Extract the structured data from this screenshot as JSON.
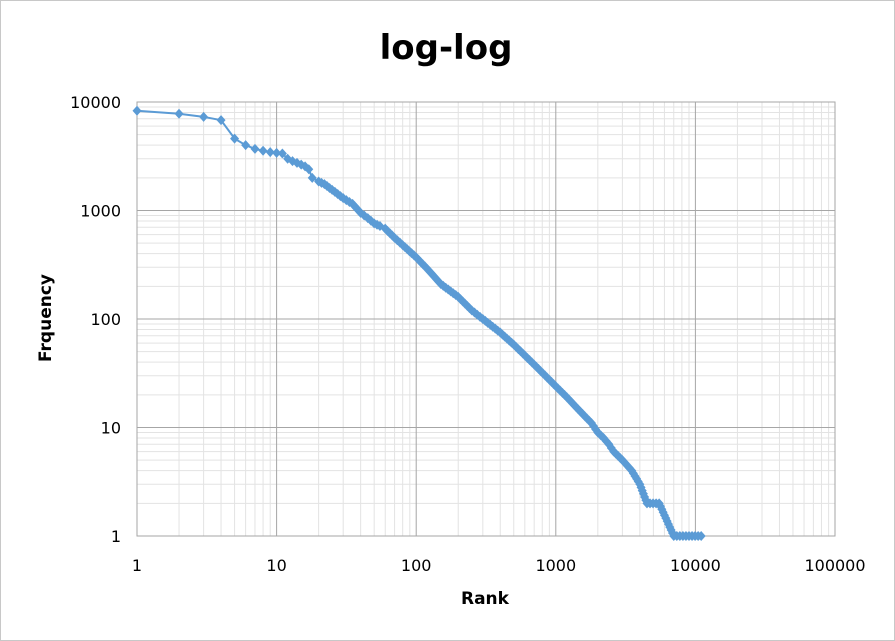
{
  "chart_data": {
    "type": "scatter",
    "title": "log-log",
    "xlabel": "Rank",
    "ylabel": "Frquency",
    "x_scale": "log",
    "y_scale": "log",
    "xlim": [
      1,
      100000
    ],
    "ylim": [
      1,
      10000
    ],
    "x_tick_labels": [
      "1",
      "10",
      "100",
      "1000",
      "10000",
      "100000"
    ],
    "y_tick_labels": [
      "1",
      "10",
      "100",
      "1000",
      "10000"
    ],
    "grid": {
      "major": true,
      "minor": true
    },
    "legend": "none",
    "colors": {
      "series": "#5b9bd5",
      "major_grid": "#a6a6a6",
      "minor_grid": "#e3e3e3",
      "plot_border": "#a6a6a6"
    },
    "series": [
      {
        "marker": "diamond",
        "x": [
          1,
          2,
          3,
          4,
          5,
          6,
          7,
          8,
          9,
          10,
          11,
          12,
          13,
          14,
          15,
          16,
          17,
          18,
          20,
          22,
          25,
          30,
          35,
          40,
          45,
          50,
          55,
          60,
          70,
          80,
          100,
          120,
          150,
          200,
          250,
          300,
          400,
          500,
          700,
          1000,
          1200,
          1500,
          1800,
          2000,
          2200,
          2400,
          2600,
          3000,
          3500,
          4000,
          4500,
          5500,
          7000,
          9000,
          11000
        ],
        "y": [
          8300,
          7800,
          7300,
          6800,
          4600,
          4000,
          3700,
          3550,
          3450,
          3400,
          3350,
          3000,
          2850,
          2750,
          2650,
          2550,
          2400,
          2000,
          1850,
          1750,
          1550,
          1300,
          1150,
          950,
          850,
          760,
          720,
          680,
          560,
          480,
          370,
          290,
          210,
          160,
          120,
          100,
          75,
          58,
          38,
          24,
          19,
          14,
          11,
          9,
          8,
          7,
          6,
          5,
          4,
          3,
          2,
          2,
          1,
          1,
          1
        ]
      }
    ]
  }
}
